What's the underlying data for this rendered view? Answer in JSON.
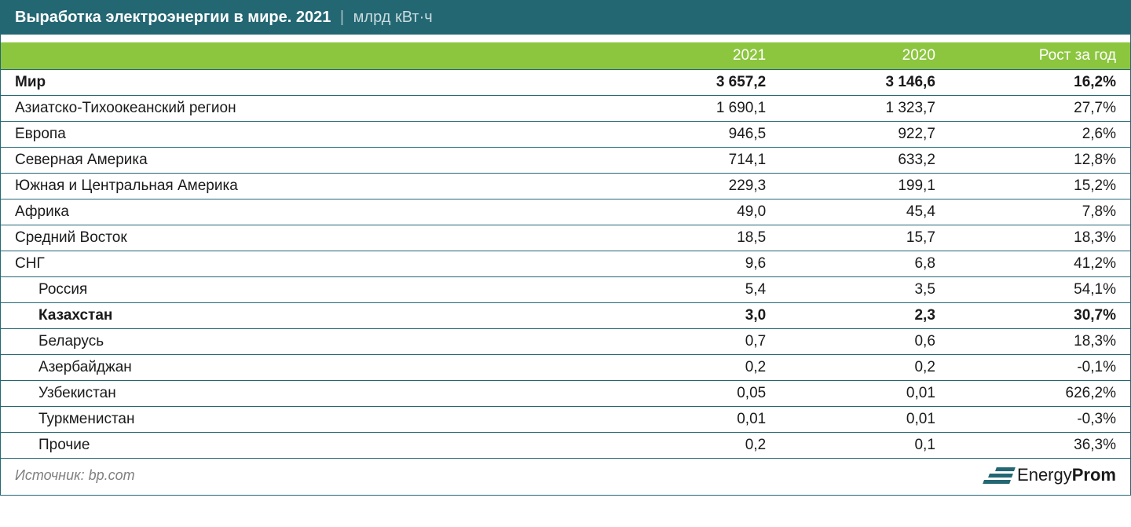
{
  "title": {
    "main": "Выработка электроэнергии в мире. 2021",
    "separator": "|",
    "unit": "млрд кВт·ч"
  },
  "table": {
    "type": "table",
    "background_color": "#ffffff",
    "header_bg": "#8cc63f",
    "header_text_color": "#ffffff",
    "row_border_color": "#236773",
    "title_bg": "#236773",
    "font_size": 19,
    "columns": [
      {
        "key": "name",
        "label": "",
        "align": "left"
      },
      {
        "key": "v2021",
        "label": "2021",
        "align": "right"
      },
      {
        "key": "v2020",
        "label": "2020",
        "align": "right"
      },
      {
        "key": "growth",
        "label": "Рост за год",
        "align": "right"
      }
    ],
    "rows": [
      {
        "name": "Мир",
        "v2021": "3 657,2",
        "v2020": "3 146,6",
        "growth": "16,2%",
        "bold": true,
        "indent": 0
      },
      {
        "name": "Азиатско-Тихоокеанский регион",
        "v2021": "1 690,1",
        "v2020": "1 323,7",
        "growth": "27,7%",
        "bold": false,
        "indent": 0
      },
      {
        "name": "Европа",
        "v2021": "946,5",
        "v2020": "922,7",
        "growth": "2,6%",
        "bold": false,
        "indent": 0
      },
      {
        "name": "Северная Америка",
        "v2021": "714,1",
        "v2020": "633,2",
        "growth": "12,8%",
        "bold": false,
        "indent": 0
      },
      {
        "name": "Южная и Центральная Америка",
        "v2021": "229,3",
        "v2020": "199,1",
        "growth": "15,2%",
        "bold": false,
        "indent": 0
      },
      {
        "name": "Африка",
        "v2021": "49,0",
        "v2020": "45,4",
        "growth": "7,8%",
        "bold": false,
        "indent": 0
      },
      {
        "name": "Средний Восток",
        "v2021": "18,5",
        "v2020": "15,7",
        "growth": "18,3%",
        "bold": false,
        "indent": 0
      },
      {
        "name": "СНГ",
        "v2021": "9,6",
        "v2020": "6,8",
        "growth": "41,2%",
        "bold": false,
        "indent": 0
      },
      {
        "name": "Россия",
        "v2021": "5,4",
        "v2020": "3,5",
        "growth": "54,1%",
        "bold": false,
        "indent": 1
      },
      {
        "name": "Казахстан",
        "v2021": "3,0",
        "v2020": "2,3",
        "growth": "30,7%",
        "bold": true,
        "indent": 1
      },
      {
        "name": "Беларусь",
        "v2021": "0,7",
        "v2020": "0,6",
        "growth": "18,3%",
        "bold": false,
        "indent": 1
      },
      {
        "name": "Азербайджан",
        "v2021": "0,2",
        "v2020": "0,2",
        "growth": "-0,1%",
        "bold": false,
        "indent": 1
      },
      {
        "name": "Узбекистан",
        "v2021": "0,05",
        "v2020": "0,01",
        "growth": "626,2%",
        "bold": false,
        "indent": 1
      },
      {
        "name": "Туркменистан",
        "v2021": "0,01",
        "v2020": "0,01",
        "growth": "-0,3%",
        "bold": false,
        "indent": 1
      },
      {
        "name": "Прочие",
        "v2021": "0,2",
        "v2020": "0,1",
        "growth": "36,3%",
        "bold": false,
        "indent": 1
      }
    ]
  },
  "footer": {
    "source": "Источник: bp.com",
    "logo_part1": "Energy",
    "logo_part2": "Prom"
  }
}
